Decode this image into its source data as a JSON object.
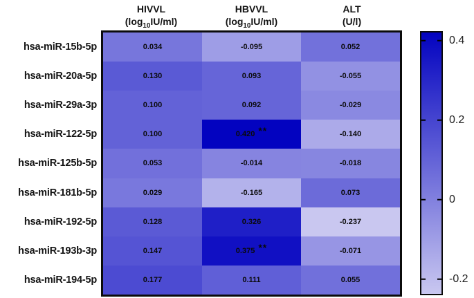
{
  "header": {
    "columns": [
      {
        "name": "HIVVL",
        "unit_pre": "(log",
        "unit_sub": "10",
        "unit_post": "IU/ml)"
      },
      {
        "name": "HBVVL",
        "unit_pre": "(log",
        "unit_sub": "10",
        "unit_post": "IU/ml)"
      },
      {
        "name": "ALT",
        "unit_pre": "(U/l)",
        "unit_sub": "",
        "unit_post": ""
      }
    ]
  },
  "chart_data": {
    "type": "heatmap",
    "title": "",
    "columns": [
      "HIVVL (log10IU/ml)",
      "HBVVL (log10IU/ml)",
      "ALT (U/l)"
    ],
    "rows": [
      "hsa-miR-15b-5p",
      "hsa-miR-20a-5p",
      "hsa-miR-29a-3p",
      "hsa-miR-122-5p",
      "hsa-miR-125b-5p",
      "hsa-miR-181b-5p",
      "hsa-miR-192-5p",
      "hsa-miR-193b-3p",
      "hsa-miR-194-5p"
    ],
    "values": [
      [
        0.034,
        -0.095,
        0.052
      ],
      [
        0.13,
        0.093,
        -0.055
      ],
      [
        0.1,
        0.092,
        -0.029
      ],
      [
        0.1,
        0.42,
        -0.14
      ],
      [
        0.053,
        -0.014,
        -0.018
      ],
      [
        0.029,
        -0.165,
        0.073
      ],
      [
        0.128,
        0.326,
        -0.237
      ],
      [
        0.147,
        0.375,
        -0.071
      ],
      [
        0.177,
        0.111,
        0.055
      ]
    ],
    "labels": [
      [
        "0.034",
        "-0.095",
        "0.052"
      ],
      [
        "0.130",
        "0.093",
        "-0.055"
      ],
      [
        "0.100",
        "0.092",
        "-0.029"
      ],
      [
        "0.100",
        "0.420",
        "-0.140"
      ],
      [
        "0.053",
        "-0.014",
        "-0.018"
      ],
      [
        "0.029",
        "-0.165",
        "0.073"
      ],
      [
        "0.128",
        "0.326",
        "-0.237"
      ],
      [
        "0.147",
        "0.375",
        "-0.071"
      ],
      [
        "0.177",
        "0.111",
        "0.055"
      ]
    ],
    "significance": [
      [
        "",
        "",
        ""
      ],
      [
        "",
        "",
        ""
      ],
      [
        "",
        "",
        ""
      ],
      [
        "",
        "**",
        ""
      ],
      [
        "",
        "",
        ""
      ],
      [
        "",
        "",
        ""
      ],
      [
        "",
        "",
        ""
      ],
      [
        "",
        "**",
        ""
      ],
      [
        "",
        "",
        ""
      ]
    ],
    "colorbar": {
      "vmin": -0.237,
      "vmax": 0.42,
      "ticks": [
        0.4,
        0.2,
        0,
        -0.2
      ],
      "tick_labels": [
        "0.4",
        "0.2",
        "0",
        "-0.2"
      ],
      "min_color": "#c9c7f0",
      "max_color": "#0303c0"
    },
    "legend_position": "right",
    "grid": false
  }
}
